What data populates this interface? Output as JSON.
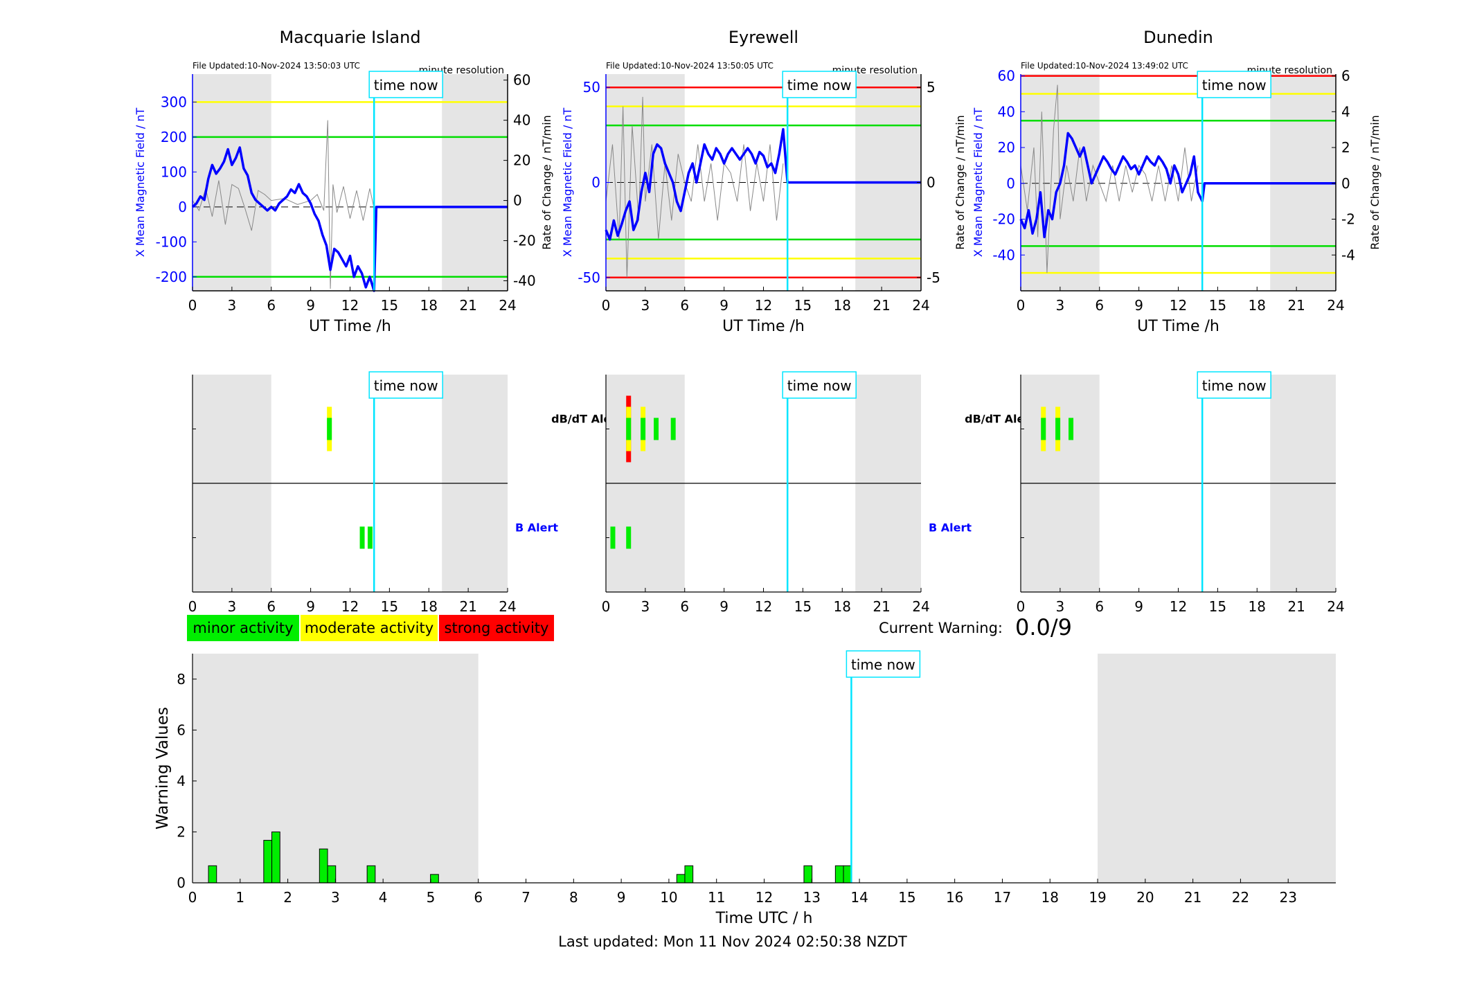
{
  "chart_data": [
    {
      "type": "line",
      "id": "macquarie",
      "title": "Macquarie Island",
      "file_updated": "File Updated:10-Nov-2024 13:50:03 UTC",
      "resolution": "minute resolution",
      "xlabel": "UT Time /h",
      "ylabel_left": "X Mean Magnetic Field / nT",
      "ylabel_right": "Rate of Change / nT/min",
      "xlim": [
        0,
        24
      ],
      "xticks": [
        0,
        3,
        6,
        9,
        12,
        15,
        18,
        21,
        24
      ],
      "ylim_left": [
        -240,
        380
      ],
      "yticks_left": [
        -200,
        -100,
        0,
        100,
        200,
        300
      ],
      "ylim_right": [
        -45,
        63
      ],
      "yticks_right": [
        -40,
        -20,
        0,
        20,
        40,
        60
      ],
      "night_shading_h": [
        [
          0,
          6
        ],
        [
          19,
          24
        ]
      ],
      "time_now_h": 13.83,
      "time_now_label": "time now",
      "thresholds": [
        {
          "value": 300,
          "color": "#ffff00"
        },
        {
          "value": 200,
          "color": "#00dd00"
        },
        {
          "value": -200,
          "color": "#00dd00"
        }
      ],
      "series": [
        {
          "role": "x_field",
          "axis": "left",
          "color": "#0000ff",
          "x": [
            0,
            0.3,
            0.6,
            0.9,
            1.2,
            1.5,
            1.8,
            2.1,
            2.4,
            2.7,
            3,
            3.3,
            3.6,
            3.9,
            4.2,
            4.5,
            4.8,
            5.1,
            5.4,
            5.7,
            6,
            6.3,
            6.6,
            6.9,
            7.2,
            7.5,
            7.8,
            8.1,
            8.4,
            8.7,
            9,
            9.3,
            9.6,
            9.9,
            10.2,
            10.5,
            10.8,
            11.1,
            11.4,
            11.7,
            12,
            12.3,
            12.6,
            12.9,
            13.2,
            13.5,
            13.83,
            14,
            24
          ],
          "y": [
            0,
            10,
            30,
            20,
            80,
            120,
            95,
            110,
            130,
            165,
            120,
            140,
            170,
            110,
            90,
            40,
            20,
            10,
            0,
            -10,
            0,
            -10,
            10,
            20,
            30,
            50,
            40,
            65,
            40,
            30,
            10,
            -20,
            -40,
            -80,
            -110,
            -180,
            -120,
            -130,
            -150,
            -170,
            -140,
            -200,
            -170,
            -190,
            -230,
            -200,
            -240,
            0,
            0
          ]
        },
        {
          "role": "rate_of_change",
          "axis": "right",
          "color": "#888888",
          "x": [
            0,
            0.5,
            1,
            1.5,
            2,
            2.5,
            3,
            3.5,
            4,
            4.5,
            5,
            5.5,
            6,
            7,
            8,
            9,
            9.5,
            10,
            10.3,
            10.5,
            10.7,
            11,
            11.5,
            12,
            12.5,
            13,
            13.5,
            13.8
          ],
          "y": [
            0,
            -5,
            6,
            -8,
            10,
            -12,
            8,
            6,
            -4,
            -15,
            5,
            3,
            0,
            1,
            -2,
            0,
            3,
            -5,
            40,
            -44,
            8,
            -6,
            7,
            -9,
            5,
            -10,
            6,
            -3
          ]
        }
      ]
    },
    {
      "type": "line",
      "id": "eyrewell",
      "title": "Eyrewell",
      "file_updated": "File Updated:10-Nov-2024 13:50:05 UTC",
      "resolution": "minute resolution",
      "xlabel": "UT Time /h",
      "ylabel_left": "X Mean Magnetic Field / nT",
      "ylabel_right": "Rate of Change / nT/min",
      "xlim": [
        0,
        24
      ],
      "xticks": [
        0,
        3,
        6,
        9,
        12,
        15,
        18,
        21,
        24
      ],
      "ylim_left": [
        -57,
        57
      ],
      "yticks_left": [
        -50,
        0,
        50
      ],
      "ylim_right": [
        -5.7,
        5.7
      ],
      "yticks_right": [
        -5,
        0,
        5
      ],
      "night_shading_h": [
        [
          0,
          6
        ],
        [
          19,
          24
        ]
      ],
      "time_now_h": 13.83,
      "time_now_label": "time now",
      "thresholds": [
        {
          "value": 50,
          "color": "#ff0000"
        },
        {
          "value": 40,
          "color": "#ffff00"
        },
        {
          "value": 30,
          "color": "#00dd00"
        },
        {
          "value": -30,
          "color": "#00dd00"
        },
        {
          "value": -40,
          "color": "#ffff00"
        },
        {
          "value": -50,
          "color": "#ff0000"
        }
      ],
      "series": [
        {
          "role": "x_field",
          "axis": "left",
          "color": "#0000ff",
          "x": [
            0,
            0.3,
            0.6,
            0.9,
            1.2,
            1.5,
            1.8,
            2.1,
            2.4,
            2.7,
            3,
            3.3,
            3.6,
            3.9,
            4.2,
            4.5,
            4.8,
            5.1,
            5.4,
            5.7,
            6,
            6.3,
            6.6,
            6.9,
            7.2,
            7.5,
            7.8,
            8.1,
            8.4,
            8.7,
            9,
            9.3,
            9.6,
            9.9,
            10.2,
            10.5,
            10.8,
            11.1,
            11.4,
            11.7,
            12,
            12.3,
            12.6,
            12.9,
            13.2,
            13.5,
            13.83,
            14,
            24
          ],
          "y": [
            -25,
            -30,
            -20,
            -28,
            -22,
            -15,
            -10,
            -25,
            -20,
            -5,
            5,
            -5,
            15,
            20,
            18,
            10,
            5,
            0,
            -10,
            -15,
            -5,
            5,
            10,
            0,
            10,
            20,
            15,
            12,
            18,
            15,
            10,
            15,
            18,
            15,
            12,
            15,
            18,
            15,
            10,
            16,
            14,
            8,
            10,
            5,
            15,
            28,
            0,
            0,
            0
          ]
        },
        {
          "role": "rate_of_change",
          "axis": "right",
          "color": "#888888",
          "x": [
            0,
            0.5,
            1,
            1.3,
            1.6,
            2,
            2.5,
            2.8,
            3,
            3.5,
            4,
            4.5,
            5,
            5.5,
            6,
            6.5,
            7,
            7.5,
            8,
            8.5,
            9,
            9.5,
            10,
            10.5,
            11,
            11.5,
            12,
            12.5,
            13,
            13.5
          ],
          "y": [
            -1,
            2,
            -3,
            4,
            -5,
            3,
            -2,
            4.5,
            -1,
            2,
            -3,
            1,
            -2,
            1.5,
            0,
            -1,
            2,
            -1,
            1,
            -2,
            1,
            0.5,
            -1,
            2,
            -1.5,
            1,
            -1,
            2,
            -2,
            1
          ]
        }
      ]
    },
    {
      "type": "line",
      "id": "dunedin",
      "title": "Dunedin",
      "file_updated": "File Updated:10-Nov-2024 13:49:02 UTC",
      "resolution": "minute resolution",
      "xlabel": "UT Time /h",
      "ylabel_left": "X Mean Magnetic Field / nT",
      "ylabel_right": "Rate of Change / nT/min",
      "xlim": [
        0,
        24
      ],
      "xticks": [
        0,
        3,
        6,
        9,
        12,
        15,
        18,
        21,
        24
      ],
      "ylim_left": [
        -60,
        61
      ],
      "yticks_left": [
        -40,
        -20,
        0,
        20,
        40,
        60
      ],
      "ylim_right": [
        -6,
        6.1
      ],
      "yticks_right": [
        -4,
        -2,
        0,
        2,
        4,
        6
      ],
      "night_shading_h": [
        [
          0,
          6
        ],
        [
          19,
          24
        ]
      ],
      "time_now_h": 13.83,
      "time_now_label": "time now",
      "thresholds": [
        {
          "value": 60,
          "color": "#ff0000"
        },
        {
          "value": 50,
          "color": "#ffff00"
        },
        {
          "value": 35,
          "color": "#00dd00"
        },
        {
          "value": -35,
          "color": "#00dd00"
        },
        {
          "value": -50,
          "color": "#ffff00"
        }
      ],
      "series": [
        {
          "role": "x_field",
          "axis": "left",
          "color": "#0000ff",
          "x": [
            0,
            0.3,
            0.6,
            0.9,
            1.2,
            1.5,
            1.8,
            2.1,
            2.4,
            2.7,
            3,
            3.3,
            3.6,
            3.9,
            4.2,
            4.5,
            4.8,
            5.1,
            5.4,
            5.7,
            6,
            6.3,
            6.6,
            6.9,
            7.2,
            7.5,
            7.8,
            8.1,
            8.4,
            8.7,
            9,
            9.3,
            9.6,
            9.9,
            10.2,
            10.5,
            10.8,
            11.1,
            11.4,
            11.7,
            12,
            12.3,
            12.6,
            12.9,
            13.2,
            13.5,
            13.83,
            14,
            24
          ],
          "y": [
            -20,
            -25,
            -15,
            -28,
            -20,
            -5,
            -30,
            -15,
            -20,
            -5,
            0,
            10,
            28,
            25,
            20,
            15,
            20,
            10,
            0,
            5,
            10,
            15,
            12,
            8,
            5,
            10,
            15,
            12,
            8,
            10,
            5,
            10,
            15,
            12,
            10,
            15,
            12,
            8,
            0,
            10,
            5,
            -5,
            0,
            5,
            15,
            -5,
            -10,
            0,
            0
          ]
        },
        {
          "role": "rate_of_change",
          "axis": "right",
          "color": "#888888",
          "x": [
            0,
            0.5,
            1,
            1.3,
            1.6,
            2,
            2.5,
            2.8,
            3,
            3.5,
            4,
            4.5,
            5,
            5.5,
            6,
            6.5,
            7,
            7.5,
            8,
            8.5,
            9,
            9.5,
            10,
            10.5,
            11,
            11.5,
            12,
            12.5,
            13,
            13.5
          ],
          "y": [
            1,
            -1.5,
            2,
            -3,
            4,
            -5,
            3,
            5.5,
            -2,
            1,
            -1,
            2,
            -1,
            1,
            0,
            -1,
            1,
            -1,
            1,
            -0.5,
            1,
            0.5,
            -1,
            1,
            -1,
            1,
            -1,
            2,
            -1,
            1
          ]
        }
      ]
    },
    {
      "type": "bar",
      "id": "alerts",
      "alert_labels": {
        "dbdt": "dB/dT Alert",
        "b": "B Alert"
      },
      "xlim": [
        0,
        24
      ],
      "xticks": [
        0,
        3,
        6,
        9,
        12,
        15,
        18,
        21,
        24
      ],
      "night_shading_h": [
        [
          0,
          6
        ],
        [
          19,
          24
        ]
      ],
      "time_now_h": 13.83,
      "time_now_label": "time now",
      "stations": [
        {
          "name": "Macquarie Island",
          "dbdt": [
            {
              "t": 10.4,
              "level": "moderate"
            }
          ],
          "b": [
            {
              "t": 12.9,
              "level": "minor"
            },
            {
              "t": 13.5,
              "level": "minor"
            }
          ]
        },
        {
          "name": "Eyrewell",
          "dbdt": [
            {
              "t": 1.7,
              "level": "strong"
            },
            {
              "t": 2.8,
              "level": "moderate"
            },
            {
              "t": 3.8,
              "level": "minor"
            },
            {
              "t": 5.1,
              "level": "minor"
            }
          ],
          "b": [
            {
              "t": 0.5,
              "level": "minor"
            },
            {
              "t": 1.7,
              "level": "minor"
            }
          ]
        },
        {
          "name": "Dunedin",
          "dbdt": [
            {
              "t": 1.7,
              "level": "moderate"
            },
            {
              "t": 2.8,
              "level": "moderate"
            },
            {
              "t": 3.8,
              "level": "minor"
            }
          ],
          "b": []
        }
      ]
    },
    {
      "type": "bar",
      "id": "warning",
      "xlabel": "Time UTC / h",
      "ylabel": "Warning Values",
      "xlim": [
        0,
        24
      ],
      "xticks": [
        0,
        1,
        2,
        3,
        4,
        5,
        6,
        7,
        8,
        9,
        10,
        11,
        12,
        13,
        14,
        15,
        16,
        17,
        18,
        19,
        20,
        21,
        22,
        23
      ],
      "ylim": [
        0,
        9
      ],
      "yticks": [
        0,
        2,
        4,
        6,
        8
      ],
      "night_shading_h": [
        [
          0,
          6
        ],
        [
          19,
          24
        ]
      ],
      "time_now_h": 13.83,
      "time_now_label": "time now",
      "bar_color": "#00ee00",
      "x": [
        0.42,
        1.58,
        1.75,
        2.75,
        2.92,
        3.75,
        5.08,
        10.25,
        10.42,
        12.92,
        13.58,
        13.75
      ],
      "values": [
        0.67,
        1.67,
        2.0,
        1.33,
        0.67,
        0.67,
        0.33,
        0.33,
        0.67,
        0.67,
        0.67,
        0.67
      ]
    }
  ],
  "legend": {
    "minor": {
      "label": "minor activity",
      "color": "#00ee00"
    },
    "moderate": {
      "label": "moderate activity",
      "color": "#ffff00"
    },
    "strong": {
      "label": "strong activity",
      "color": "#ff0000"
    }
  },
  "current_warning": {
    "label": "Current Warning:",
    "value": "0.0/9"
  },
  "footer": "Last updated: Mon 11 Nov 2024 02:50:38 NZDT"
}
